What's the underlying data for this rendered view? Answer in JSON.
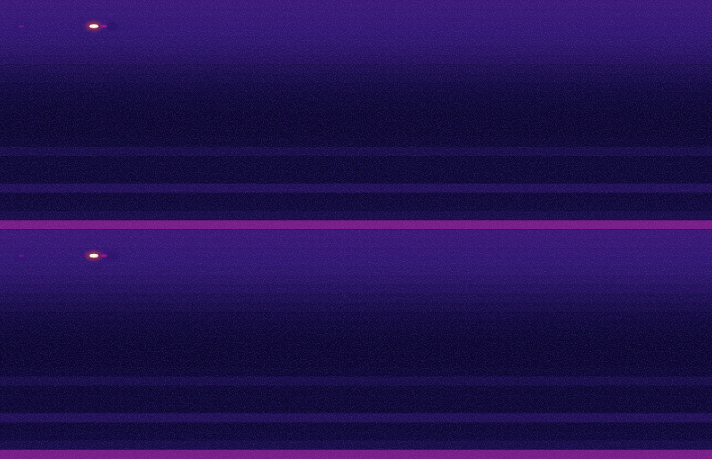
{
  "chart_data": [
    {
      "type": "heatmap",
      "tick_labels": false,
      "xlim": [
        0,
        100
      ],
      "ylim": [
        0,
        100
      ],
      "zlim": [
        0,
        1
      ],
      "rows": [
        0.38,
        0.37,
        0.36,
        0.35,
        0.33,
        0.3,
        0.27,
        0.23,
        0.2,
        0.17,
        0.15,
        0.13,
        0.12,
        0.12,
        0.12,
        0.13,
        0.2,
        0.13,
        0.13,
        0.13,
        0.25,
        0.14,
        0.15,
        0.2,
        0.55
      ],
      "points": [
        {
          "x": 3,
          "y": 11.4,
          "value": 0.5
        },
        {
          "x": 13.2,
          "y": 11.4,
          "value": 1.0
        },
        {
          "x": 14.6,
          "y": 11.4,
          "value": 0.6
        },
        {
          "x": 15.8,
          "y": 11.4,
          "value": 0.35
        }
      ]
    },
    {
      "type": "heatmap",
      "tick_labels": false,
      "xlim": [
        0,
        100
      ],
      "ylim": [
        0,
        100
      ],
      "zlim": [
        0,
        1
      ],
      "rows": [
        0.38,
        0.37,
        0.36,
        0.35,
        0.33,
        0.3,
        0.27,
        0.23,
        0.2,
        0.17,
        0.15,
        0.13,
        0.12,
        0.12,
        0.12,
        0.13,
        0.2,
        0.13,
        0.13,
        0.13,
        0.25,
        0.14,
        0.15,
        0.2,
        0.55
      ],
      "points": [
        {
          "x": 3,
          "y": 11.4,
          "value": 0.5
        },
        {
          "x": 13.2,
          "y": 11.4,
          "value": 1.0
        },
        {
          "x": 14.6,
          "y": 11.4,
          "value": 0.6
        },
        {
          "x": 15.8,
          "y": 11.4,
          "value": 0.35
        }
      ]
    }
  ]
}
